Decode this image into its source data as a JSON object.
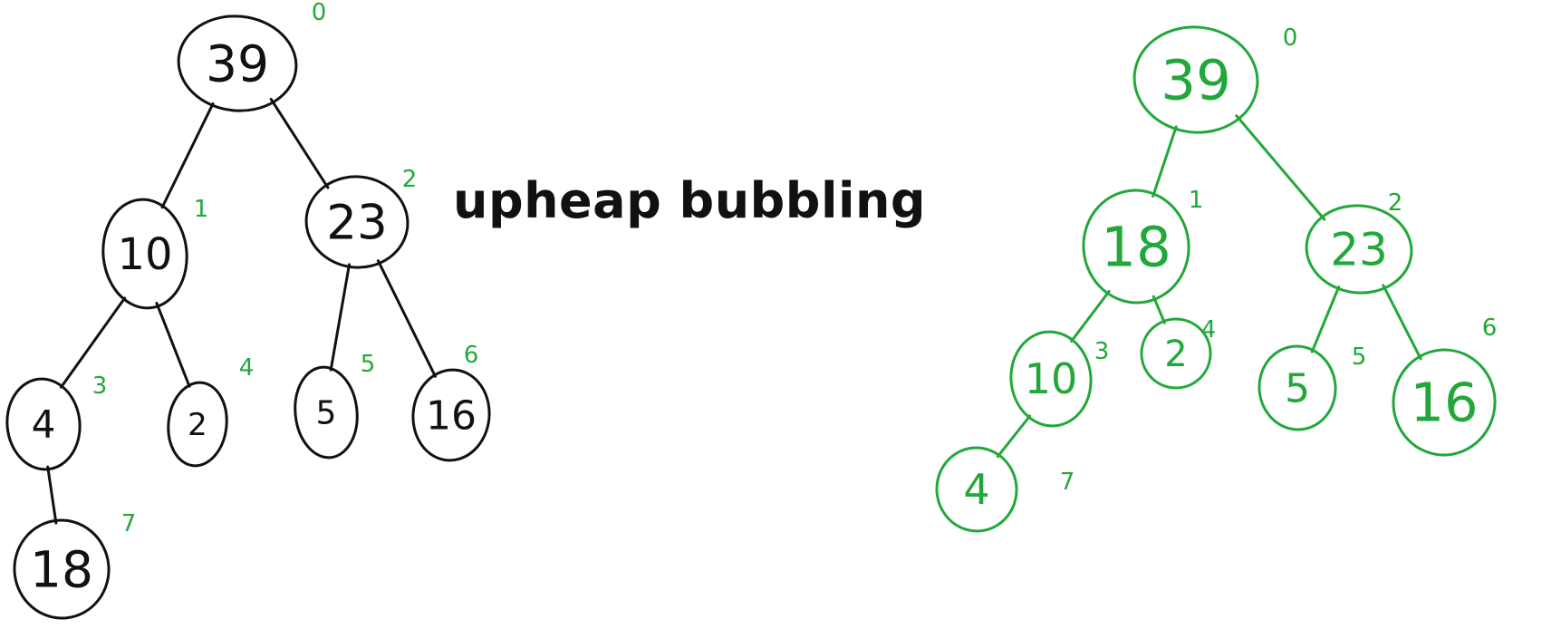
{
  "title": "upheap bubbling",
  "colors": {
    "before": "#111111",
    "after": "#22a83a",
    "index": "#22a83a"
  },
  "before_tree": {
    "nodes": [
      {
        "value": "39",
        "index": "0"
      },
      {
        "value": "10",
        "index": "1"
      },
      {
        "value": "23",
        "index": "2"
      },
      {
        "value": "4",
        "index": "3"
      },
      {
        "value": "2",
        "index": "4"
      },
      {
        "value": "5",
        "index": "5"
      },
      {
        "value": "16",
        "index": "6"
      },
      {
        "value": "18",
        "index": "7"
      }
    ]
  },
  "after_tree": {
    "nodes": [
      {
        "value": "39",
        "index": "0"
      },
      {
        "value": "18",
        "index": "1"
      },
      {
        "value": "23",
        "index": "2"
      },
      {
        "value": "10",
        "index": "3"
      },
      {
        "value": "2",
        "index": "4"
      },
      {
        "value": "5",
        "index": "5"
      },
      {
        "value": "16",
        "index": "6"
      },
      {
        "value": "4",
        "index": "7"
      }
    ]
  }
}
